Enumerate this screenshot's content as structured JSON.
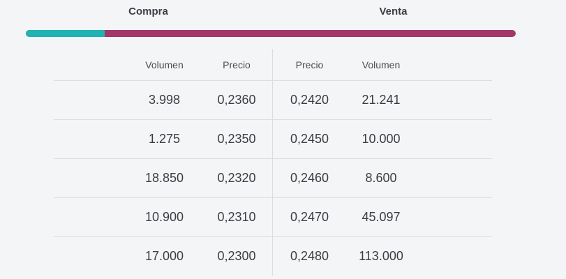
{
  "header": {
    "buy_label": "Compra",
    "sell_label": "Venta"
  },
  "depth_bar": {
    "buy_percent": 16.1,
    "sell_percent": 83.9,
    "buy_color": "#21b2b4",
    "sell_color": "#a23768"
  },
  "table": {
    "headers": {
      "buy_volume": "Volumen",
      "buy_price": "Precio",
      "sell_price": "Precio",
      "sell_volume": "Volumen"
    },
    "rows": [
      {
        "buy_volume": "3.998",
        "buy_price": "0,2360",
        "sell_price": "0,2420",
        "sell_volume": "21.241"
      },
      {
        "buy_volume": "1.275",
        "buy_price": "0,2350",
        "sell_price": "0,2450",
        "sell_volume": "10.000"
      },
      {
        "buy_volume": "18.850",
        "buy_price": "0,2320",
        "sell_price": "0,2460",
        "sell_volume": "8.600"
      },
      {
        "buy_volume": "10.900",
        "buy_price": "0,2310",
        "sell_price": "0,2470",
        "sell_volume": "45.097"
      },
      {
        "buy_volume": "17.000",
        "buy_price": "0,2300",
        "sell_price": "0,2480",
        "sell_volume": "113.000"
      }
    ]
  }
}
